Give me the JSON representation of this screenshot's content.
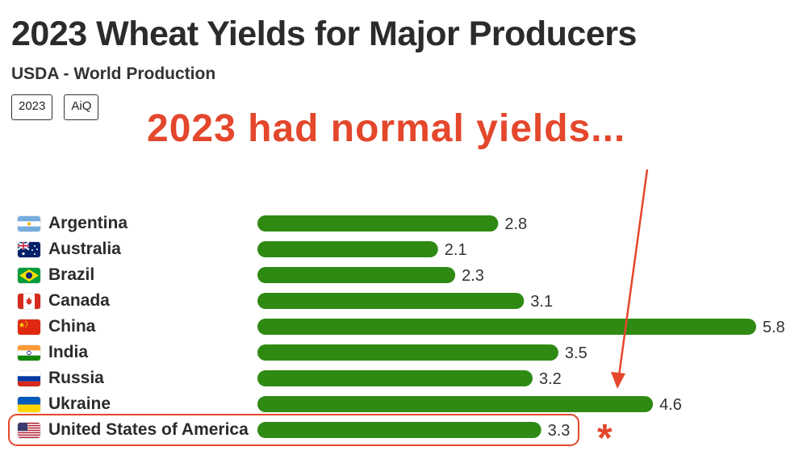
{
  "header": {
    "title": "2023 Wheat Yields for Major Producers",
    "subtitle": "USDA - World Production",
    "tags": [
      "2023",
      "AiQ"
    ]
  },
  "annotation": {
    "text": "2023 had normal yields...",
    "marker": "*"
  },
  "colors": {
    "bar": "#2f8a14",
    "annotation": "#e4472c",
    "title": "#2b2b2b"
  },
  "chart_data": {
    "type": "bar",
    "orientation": "horizontal",
    "title": "2023 Wheat Yields for Major Producers",
    "subtitle": "USDA - World Production",
    "categories": [
      "Argentina",
      "Australia",
      "Brazil",
      "Canada",
      "China",
      "India",
      "Russia",
      "Ukraine",
      "United States of America"
    ],
    "values": [
      2.8,
      2.1,
      2.3,
      3.1,
      5.8,
      3.5,
      3.2,
      4.6,
      3.3
    ],
    "flags": [
      "argentina-flag-icon",
      "australia-flag-icon",
      "brazil-flag-icon",
      "canada-flag-icon",
      "china-flag-icon",
      "india-flag-icon",
      "russia-flag-icon",
      "ukraine-flag-icon",
      "usa-flag-icon"
    ],
    "highlighted": "United States of America",
    "xlim": [
      0,
      5.8
    ],
    "grid": false,
    "legend": "none"
  }
}
